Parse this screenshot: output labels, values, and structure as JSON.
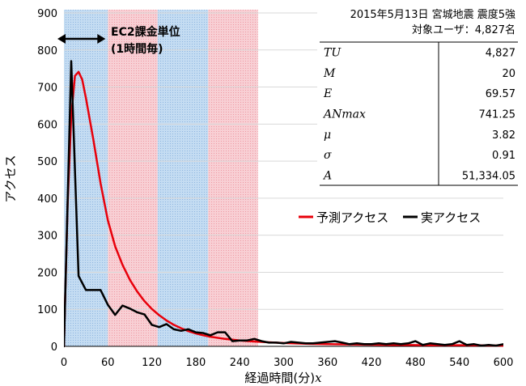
{
  "chart_data": {
    "type": "line",
    "xlabel": "経過時間(分)",
    "xlabel_var": "x",
    "ylabel": "アクセス",
    "xlim": [
      0,
      600
    ],
    "ylim": [
      0,
      900
    ],
    "x_ticks": [
      0,
      60,
      120,
      180,
      240,
      300,
      360,
      420,
      480,
      540,
      600
    ],
    "y_ticks": [
      0,
      100,
      200,
      300,
      400,
      500,
      600,
      700,
      800,
      900
    ],
    "shaded_bands": [
      {
        "from": 0,
        "to": 60,
        "color": "blue"
      },
      {
        "from": 60,
        "to": 128,
        "color": "red"
      },
      {
        "from": 128,
        "to": 197,
        "color": "blue"
      },
      {
        "from": 197,
        "to": 265,
        "color": "red"
      }
    ],
    "band_annotation": {
      "line1": "EC2課金単位",
      "line2": "(1時間毎)",
      "from": 0,
      "to": 60
    },
    "info_box": {
      "title1": "2015年5月13日 宮城地震 震度5強",
      "title2": "対象ユーザ：4,827名",
      "params": [
        {
          "name": "TU",
          "value": "4,827"
        },
        {
          "name": "M",
          "value": "20"
        },
        {
          "name": "E",
          "value": "69.57"
        },
        {
          "name": "ANmax",
          "value": "741.25"
        },
        {
          "name": "μ",
          "value": "3.82"
        },
        {
          "name": "σ",
          "value": "0.91"
        },
        {
          "name": "A",
          "value": "51,334.05"
        }
      ]
    },
    "legend": {
      "position": "right-middle"
    },
    "series": [
      {
        "name": "予測アクセス",
        "color": "#e8000b",
        "x": [
          0,
          5,
          10,
          15,
          20,
          25,
          30,
          40,
          50,
          60,
          70,
          80,
          90,
          100,
          110,
          120,
          130,
          140,
          150,
          160,
          170,
          180,
          190,
          200,
          220,
          240,
          260,
          280,
          300,
          330,
          360,
          400,
          450,
          500,
          550,
          600
        ],
        "y": [
          0,
          380,
          620,
          730,
          741,
          720,
          670,
          560,
          440,
          340,
          270,
          220,
          180,
          148,
          122,
          101,
          84,
          70,
          58,
          49,
          41,
          35,
          30,
          26,
          20,
          16,
          13,
          11,
          9,
          7,
          6,
          5,
          4,
          3,
          3,
          2
        ]
      },
      {
        "name": "実アクセス",
        "color": "#000000",
        "x": [
          0,
          10,
          20,
          30,
          40,
          50,
          60,
          70,
          80,
          90,
          100,
          110,
          120,
          130,
          140,
          150,
          160,
          170,
          180,
          190,
          200,
          210,
          220,
          230,
          240,
          250,
          260,
          270,
          280,
          290,
          300,
          310,
          320,
          330,
          340,
          350,
          360,
          370,
          380,
          390,
          400,
          410,
          420,
          430,
          440,
          450,
          460,
          470,
          480,
          490,
          500,
          510,
          520,
          530,
          540,
          550,
          560,
          570,
          580,
          590,
          600
        ],
        "y": [
          0,
          770,
          190,
          152,
          152,
          152,
          112,
          85,
          110,
          102,
          92,
          86,
          58,
          52,
          60,
          46,
          42,
          46,
          38,
          36,
          30,
          38,
          38,
          14,
          16,
          16,
          20,
          14,
          10,
          10,
          8,
          12,
          10,
          8,
          8,
          10,
          12,
          14,
          10,
          6,
          8,
          6,
          6,
          8,
          6,
          8,
          6,
          8,
          14,
          4,
          8,
          6,
          4,
          6,
          14,
          4,
          6,
          2,
          4,
          2,
          6
        ]
      }
    ]
  }
}
